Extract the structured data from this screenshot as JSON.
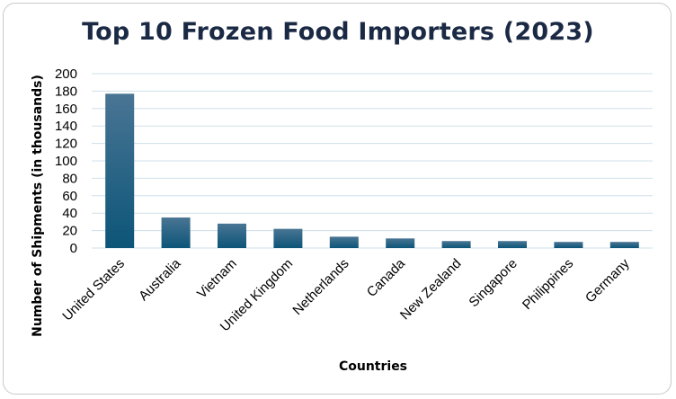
{
  "chart_data": {
    "type": "bar",
    "title": "Top 10 Frozen Food Importers (2023)",
    "xlabel": "Countries",
    "ylabel": "Number of Shipments (in thousands)",
    "categories": [
      "United States",
      "Australia",
      "Vietnam",
      "United Kingdom",
      "Netherlands",
      "Canada",
      "New Zealand",
      "Singapore",
      "Philippines",
      "Germany"
    ],
    "values": [
      177,
      35,
      28,
      22,
      13,
      11,
      8,
      8,
      7,
      7
    ],
    "ylim": [
      0,
      200
    ],
    "yticks": [
      0,
      20,
      40,
      60,
      80,
      100,
      120,
      140,
      160,
      180,
      200
    ],
    "grid": true,
    "bar_color_top": "#4a7594",
    "bar_color_bottom": "#0c5578"
  }
}
